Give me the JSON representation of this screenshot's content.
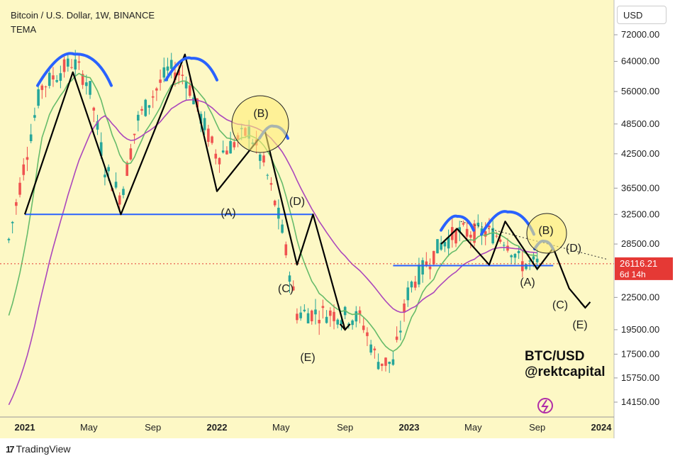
{
  "header": {
    "title": "Bitcoin / U.S. Dollar, 1W, BINANCE",
    "indicator": "TEMA"
  },
  "currency_button": "USD",
  "brand": {
    "logo_text": "TradingView"
  },
  "price_tag": {
    "price": "26116.21",
    "countdown": "6d 14h",
    "color": "#e53935"
  },
  "watermark": {
    "line1": "BTC/USD",
    "line2": "@rektcapital"
  },
  "colors": {
    "background": "#fdf8c5",
    "up_candle": "#26a69a",
    "down_candle": "#ef5350",
    "ema_fast": "#66bb6a",
    "ema_slow": "#ab47bc",
    "support": "#2962ff",
    "arcs": "#2962ff",
    "pattern": "#000000"
  },
  "chart_data": {
    "type": "candlestick",
    "scale": "log",
    "y_ticks": [
      "72000.00",
      "64000.00",
      "56000.00",
      "48500.00",
      "42500.00",
      "36500.00",
      "32500.00",
      "28500.00",
      "22500.00",
      "19500.00",
      "17500.00",
      "15750.00",
      "14150.00"
    ],
    "x_ticks": [
      "2021",
      "May",
      "Sep",
      "2022",
      "May",
      "Sep",
      "2023",
      "May",
      "Sep",
      "2024"
    ],
    "last_price": 26116.21,
    "support_levels": [
      {
        "price": 32500,
        "from": "2021-01",
        "to": "2022-07"
      },
      {
        "price": 25900,
        "from": "2022-12",
        "to": "2023-10"
      }
    ],
    "wave_labels": [
      "(A)",
      "(B)",
      "(C)",
      "(D)",
      "(E)",
      "(A)",
      "(B)",
      "(C)",
      "(D)",
      "(E)"
    ],
    "series": [
      {
        "name": "TEMA",
        "color": "#66bb6a"
      },
      {
        "name": "",
        "color": "#ab47bc"
      }
    ],
    "ohlc_keyframes": [
      [
        "2020-12",
        23000,
        29000
      ],
      [
        "2021-01",
        33000,
        41000
      ],
      [
        "2021-02",
        48000,
        57000
      ],
      [
        "2021-04",
        60000,
        64000
      ],
      [
        "2021-05",
        37000,
        58000
      ],
      [
        "2021-06",
        34000,
        40000
      ],
      [
        "2021-07",
        31000,
        35000
      ],
      [
        "2021-08",
        44000,
        49000
      ],
      [
        "2021-10",
        57000,
        62000
      ],
      [
        "2021-11",
        66000,
        60000
      ],
      [
        "2021-12",
        47000,
        50000
      ],
      [
        "2022-01",
        37000,
        42000
      ],
      [
        "2022-03",
        45000,
        47000
      ],
      [
        "2022-04",
        38000,
        40000
      ],
      [
        "2022-05",
        29000,
        31000
      ],
      [
        "2022-06",
        19000,
        21000
      ],
      [
        "2022-08",
        23000,
        21000
      ],
      [
        "2022-10",
        19500,
        20500
      ],
      [
        "2022-11",
        16000,
        17000
      ],
      [
        "2022-12",
        16500,
        16800
      ],
      [
        "2023-01",
        23000,
        23500
      ],
      [
        "2023-03",
        28000,
        28500
      ],
      [
        "2023-04",
        29000,
        30000
      ],
      [
        "2023-06",
        30500,
        30000
      ],
      [
        "2023-07",
        29500,
        29200
      ],
      [
        "2023-08",
        26000,
        26100
      ],
      [
        "2023-09",
        26100,
        26116
      ]
    ]
  }
}
